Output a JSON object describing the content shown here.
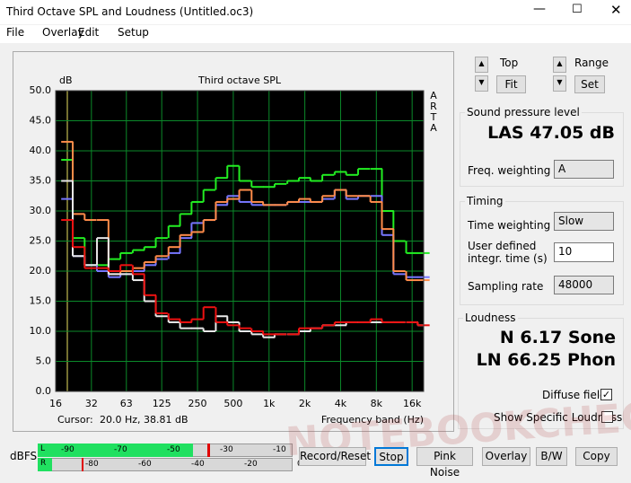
{
  "window": {
    "title": "Third Octave SPL and Loudness (Untitled.oc3)"
  },
  "menu": [
    "File",
    "Overlay",
    "Edit",
    "Setup"
  ],
  "chart_data": {
    "type": "line",
    "step": true,
    "title": "Third octave SPL",
    "y_label": "dB",
    "brand": [
      "A",
      "R",
      "T",
      "A"
    ],
    "x_label": "Frequency band (Hz)",
    "cursor_label": "Cursor:",
    "cursor_value": "20.0 Hz, 38.81 dB",
    "log_x": true,
    "grid": true,
    "x": [
      20,
      25,
      31.5,
      40,
      50,
      63,
      80,
      100,
      125,
      160,
      200,
      250,
      315,
      400,
      500,
      630,
      800,
      1000,
      1250,
      1600,
      2000,
      2500,
      3150,
      4000,
      5000,
      6300,
      8000,
      10000,
      12500,
      16000,
      20000
    ],
    "series": [
      {
        "color": "#22ee22",
        "values": [
          38.5,
          25.5,
          21,
          21,
          22,
          23,
          23.5,
          24,
          25.5,
          27.5,
          29.5,
          31.5,
          33.5,
          35.5,
          37.5,
          35,
          34,
          34,
          34.5,
          35,
          35.5,
          35,
          36,
          36.5,
          36,
          37,
          37,
          30,
          25,
          23,
          23
        ]
      },
      {
        "color": "#7777ff",
        "values": [
          32,
          22.5,
          21,
          20,
          19,
          19.5,
          20,
          21,
          22,
          23,
          25.5,
          28,
          28.5,
          31,
          32.5,
          31.5,
          31,
          31,
          31,
          31.5,
          31.5,
          31.5,
          32,
          33.5,
          32,
          32.5,
          32.5,
          26,
          19.5,
          19,
          19
        ]
      },
      {
        "color": "#ff8c4a",
        "values": [
          41.5,
          29.5,
          28.5,
          28.5,
          19.5,
          20,
          20.5,
          21.5,
          22.5,
          24,
          26,
          26.5,
          28.5,
          31.5,
          32,
          33.5,
          31.5,
          31,
          31,
          31.5,
          32,
          31.5,
          32.5,
          33.5,
          32.5,
          32.5,
          31.5,
          27,
          20,
          18.5,
          18.5
        ]
      },
      {
        "color": "#e8e8e8",
        "values": [
          35,
          22.5,
          21,
          25.5,
          19.5,
          19.5,
          18.5,
          15,
          12.5,
          11.5,
          10.5,
          10.5,
          10,
          12.5,
          11.5,
          10,
          9.5,
          9,
          9.5,
          9.5,
          10,
          10.5,
          11,
          11,
          11.5,
          11.5,
          11.5,
          11.5,
          11.5,
          11.5,
          11
        ]
      },
      {
        "color": "#ee1111",
        "values": [
          28.5,
          24,
          20.5,
          20.5,
          20,
          21,
          19.5,
          16,
          13,
          12,
          11.5,
          12,
          14,
          11.5,
          11,
          10.5,
          10,
          9.5,
          9.5,
          9.5,
          10.5,
          10.5,
          11,
          11.5,
          11.5,
          11.5,
          12,
          11.5,
          11.5,
          11.5,
          11
        ]
      }
    ],
    "xlim": [
      16,
      20000
    ],
    "ylim": [
      0,
      50
    ],
    "xticks": [
      16,
      32,
      63,
      125,
      250,
      500,
      {
        "value": 1000,
        "label": "1k"
      },
      {
        "value": 2000,
        "label": "2k"
      },
      {
        "value": 4000,
        "label": "4k"
      },
      {
        "value": 8000,
        "label": "8k"
      },
      {
        "value": 16000,
        "label": "16k"
      }
    ],
    "yticks": [
      {
        "value": 0,
        "label": "0.0"
      },
      {
        "value": 5,
        "label": "5.0"
      },
      {
        "value": 10,
        "label": "10.0"
      },
      {
        "value": 15,
        "label": "15.0"
      },
      {
        "value": 20,
        "label": "20.0"
      },
      {
        "value": 25,
        "label": "25.0"
      },
      {
        "value": 30,
        "label": "30.0"
      },
      {
        "value": 35,
        "label": "35.0"
      },
      {
        "value": 40,
        "label": "40.0"
      },
      {
        "value": 45,
        "label": "45.0"
      },
      {
        "value": 50,
        "label": "50.0"
      }
    ]
  },
  "controls": {
    "top": "Top",
    "fit": "Fit",
    "range": "Range",
    "set": "Set"
  },
  "spl": {
    "label": "Sound pressure level",
    "value": "LAS 47.05 dB",
    "freq_weighting": "Freq. weighting",
    "freq_weighting_value": "A"
  },
  "timing": {
    "label": "Timing",
    "time_weighting": "Time weighting",
    "time_weighting_value": "Slow",
    "integr_time": "User defined integr. time (s)",
    "integr_time_value": "10",
    "sampling_rate": "Sampling rate",
    "sampling_rate_value": "48000"
  },
  "loudness": {
    "label": "Loudness",
    "n": "N 6.17 Sone",
    "ln": "LN 66.25 Phon",
    "diffuse": "Diffuse field",
    "specific": "Show Specific Loudness"
  },
  "meters": {
    "unit": "dBFS",
    "left": "L",
    "right": "R",
    "left_scale": [
      "-90",
      "-70",
      "-50",
      "-30",
      "-10"
    ],
    "right_scale": [
      "-80",
      "-60",
      "-40",
      "-20",
      "0"
    ]
  },
  "buttons": [
    "Record/Reset",
    "Stop",
    "Pink Noise",
    "Overlay",
    "B/W",
    "Copy"
  ],
  "watermark": "NOTEBOOKCHECK"
}
